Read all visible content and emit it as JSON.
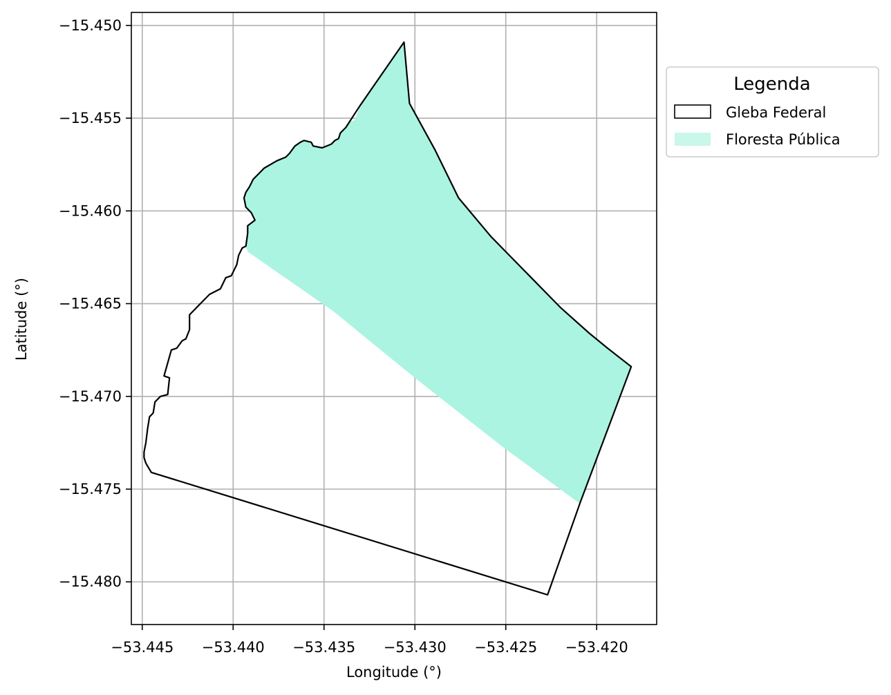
{
  "chart_data": {
    "type": "map",
    "xlabel": "Longitude (°)",
    "ylabel": "Latitude (°)",
    "xlim": [
      -53.4456,
      -53.4167
    ],
    "ylim": [
      -15.4823,
      -15.4493
    ],
    "grid": true,
    "x_ticks": [
      -53.445,
      -53.44,
      -53.435,
      -53.43,
      -53.425,
      -53.42
    ],
    "y_ticks": [
      -15.45,
      -15.455,
      -15.46,
      -15.465,
      -15.47,
      -15.475,
      -15.48
    ],
    "x_tick_labels": [
      "−53.445",
      "−53.440",
      "−53.435",
      "−53.430",
      "−53.425",
      "−53.420"
    ],
    "y_tick_labels": [
      "−15.450",
      "−15.455",
      "−15.460",
      "−15.465",
      "−15.470",
      "−15.475",
      "−15.480"
    ],
    "legend": {
      "title": "Legenda",
      "placement": "outside-right-top",
      "entries": [
        {
          "label": "Gleba Federal",
          "style": "outline",
          "edge": "#000000",
          "fill": "none"
        },
        {
          "label": "Floresta Pública",
          "style": "fill",
          "fill": "#aaf4e1"
        }
      ]
    },
    "layers": [
      {
        "name": "Gleba Federal",
        "fill": "none",
        "edge": "#000000",
        "polygon": [
          [
            -53.4306,
            -15.4509
          ],
          [
            -53.4303,
            -15.4542
          ],
          [
            -53.4289,
            -15.4567
          ],
          [
            -53.4276,
            -15.4593
          ],
          [
            -53.4258,
            -15.4614
          ],
          [
            -53.4243,
            -15.4629
          ],
          [
            -53.422,
            -15.4652
          ],
          [
            -53.4204,
            -15.4666
          ],
          [
            -53.4194,
            -15.4674
          ],
          [
            -53.4181,
            -15.4684
          ],
          [
            -53.4209,
            -15.4757
          ],
          [
            -53.4227,
            -15.4807
          ],
          [
            -53.4445,
            -15.4741
          ],
          [
            -53.4448,
            -15.4736
          ],
          [
            -53.4449,
            -15.4733
          ],
          [
            -53.4449,
            -15.473
          ],
          [
            -53.4448,
            -15.4725
          ],
          [
            -53.4447,
            -15.4717
          ],
          [
            -53.4446,
            -15.4711
          ],
          [
            -53.4444,
            -15.4709
          ],
          [
            -53.4443,
            -15.4703
          ],
          [
            -53.444,
            -15.47
          ],
          [
            -53.4436,
            -15.4699
          ],
          [
            -53.4435,
            -15.469
          ],
          [
            -53.4438,
            -15.4689
          ],
          [
            -53.4436,
            -15.4682
          ],
          [
            -53.4434,
            -15.4675
          ],
          [
            -53.4431,
            -15.4674
          ],
          [
            -53.4428,
            -15.467
          ],
          [
            -53.4426,
            -15.4669
          ],
          [
            -53.4424,
            -15.4664
          ],
          [
            -53.4424,
            -15.4656
          ],
          [
            -53.4419,
            -15.4651
          ],
          [
            -53.4413,
            -15.4645
          ],
          [
            -53.4407,
            -15.4642
          ],
          [
            -53.4404,
            -15.4636
          ],
          [
            -53.4401,
            -15.4635
          ],
          [
            -53.4398,
            -15.4629
          ],
          [
            -53.4397,
            -15.4624
          ],
          [
            -53.4395,
            -15.462
          ],
          [
            -53.4393,
            -15.4619
          ],
          [
            -53.4392,
            -15.4612
          ],
          [
            -53.4392,
            -15.4608
          ],
          [
            -53.4388,
            -15.4605
          ],
          [
            -53.439,
            -15.4601
          ],
          [
            -53.4393,
            -15.4598
          ],
          [
            -53.4394,
            -15.4593
          ],
          [
            -53.4393,
            -15.459
          ],
          [
            -53.4391,
            -15.4587
          ],
          [
            -53.4389,
            -15.4583
          ],
          [
            -53.4386,
            -15.458
          ],
          [
            -53.4383,
            -15.4577
          ],
          [
            -53.4376,
            -15.4573
          ],
          [
            -53.4371,
            -15.4571
          ],
          [
            -53.4369,
            -15.4569
          ],
          [
            -53.4366,
            -15.4565
          ],
          [
            -53.4363,
            -15.4563
          ],
          [
            -53.4361,
            -15.4562
          ],
          [
            -53.4357,
            -15.4563
          ],
          [
            -53.4356,
            -15.4565
          ],
          [
            -53.4351,
            -15.4566
          ],
          [
            -53.4346,
            -15.4564
          ],
          [
            -53.4344,
            -15.4562
          ],
          [
            -53.4342,
            -15.4561
          ],
          [
            -53.4341,
            -15.4558
          ],
          [
            -53.4338,
            -15.4555
          ],
          [
            -53.433,
            -15.4543
          ],
          [
            -53.4306,
            -15.4509
          ]
        ]
      },
      {
        "name": "Floresta Pública",
        "fill": "#aaf4e1",
        "edge": "none",
        "polygon": [
          [
            -53.4306,
            -15.4509
          ],
          [
            -53.4303,
            -15.4542
          ],
          [
            -53.4289,
            -15.4567
          ],
          [
            -53.4276,
            -15.4593
          ],
          [
            -53.4258,
            -15.4614
          ],
          [
            -53.4243,
            -15.4629
          ],
          [
            -53.422,
            -15.4652
          ],
          [
            -53.4204,
            -15.4666
          ],
          [
            -53.4194,
            -15.4674
          ],
          [
            -53.4181,
            -15.4684
          ],
          [
            -53.4209,
            -15.4758
          ],
          [
            -53.4252,
            -15.4727
          ],
          [
            -53.43,
            -15.469
          ],
          [
            -53.4345,
            -15.4654
          ],
          [
            -53.4392,
            -15.4622
          ],
          [
            -53.4393,
            -15.4619
          ],
          [
            -53.4392,
            -15.4612
          ],
          [
            -53.4392,
            -15.4608
          ],
          [
            -53.4388,
            -15.4605
          ],
          [
            -53.439,
            -15.4601
          ],
          [
            -53.4393,
            -15.4598
          ],
          [
            -53.4394,
            -15.4593
          ],
          [
            -53.4393,
            -15.459
          ],
          [
            -53.4391,
            -15.4587
          ],
          [
            -53.4389,
            -15.4583
          ],
          [
            -53.4386,
            -15.458
          ],
          [
            -53.4383,
            -15.4577
          ],
          [
            -53.4376,
            -15.4573
          ],
          [
            -53.4371,
            -15.4571
          ],
          [
            -53.4369,
            -15.4569
          ],
          [
            -53.4366,
            -15.4565
          ],
          [
            -53.4363,
            -15.4563
          ],
          [
            -53.4361,
            -15.4562
          ],
          [
            -53.4357,
            -15.4563
          ],
          [
            -53.4356,
            -15.4565
          ],
          [
            -53.4351,
            -15.4566
          ],
          [
            -53.4346,
            -15.4564
          ],
          [
            -53.4344,
            -15.4562
          ],
          [
            -53.4342,
            -15.4561
          ],
          [
            -53.4341,
            -15.4558
          ],
          [
            -53.4338,
            -15.4555
          ],
          [
            -53.4336,
            -15.4552
          ],
          [
            -53.4333,
            -15.4551
          ],
          [
            -53.433,
            -15.4543
          ],
          [
            -53.4306,
            -15.4509
          ]
        ]
      }
    ]
  }
}
